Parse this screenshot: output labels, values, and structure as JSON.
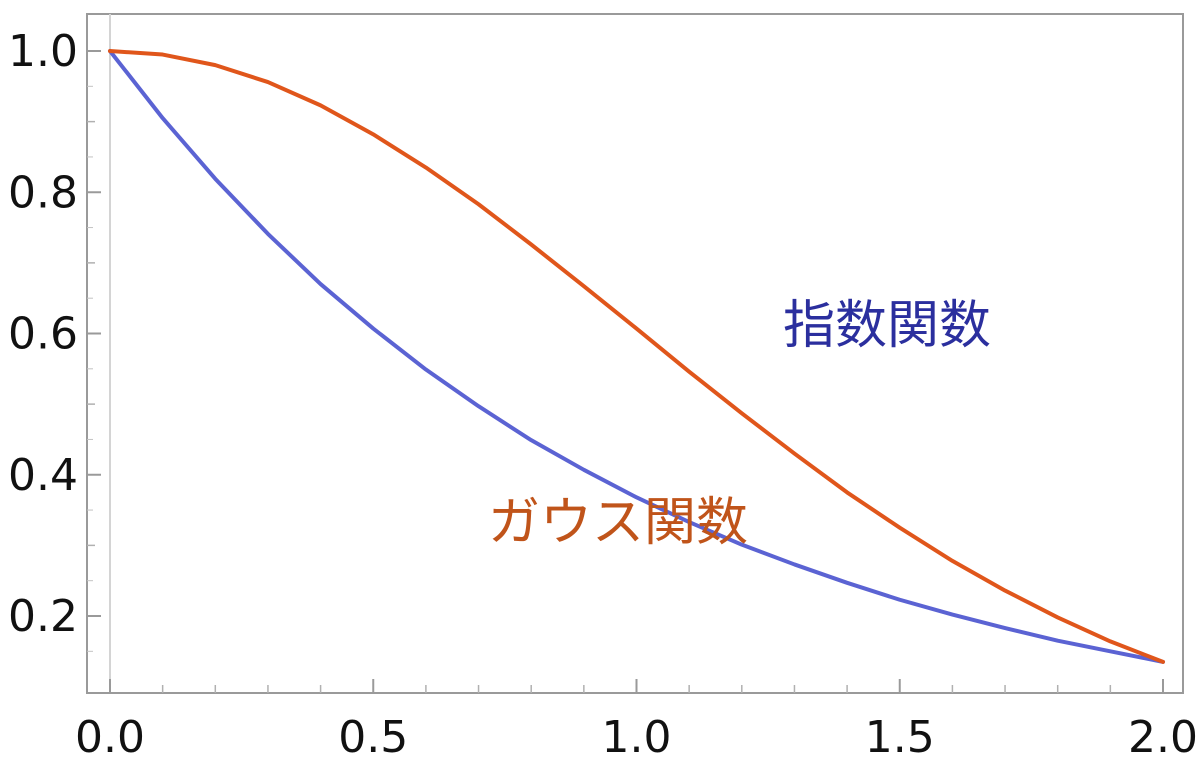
{
  "chart_data": {
    "type": "line",
    "title": "",
    "xlabel": "",
    "ylabel": "",
    "xlim": [
      0.0,
      2.0
    ],
    "ylim": [
      0.1,
      1.05
    ],
    "x_ticks": [
      "0.0",
      "0.5",
      "1.0",
      "1.5",
      "2.0"
    ],
    "y_ticks": [
      "0.2",
      "0.4",
      "0.6",
      "0.8",
      "1.0"
    ],
    "x_tick_values": [
      0.0,
      0.5,
      1.0,
      1.5,
      2.0
    ],
    "y_tick_values": [
      0.2,
      0.4,
      0.6,
      0.8,
      1.0
    ],
    "grid": false,
    "series": [
      {
        "name": "指数関数",
        "color": "#5b63d3",
        "x": [
          0.0,
          0.1,
          0.2,
          0.3,
          0.4,
          0.5,
          0.6,
          0.7,
          0.8,
          0.9,
          1.0,
          1.1,
          1.2,
          1.3,
          1.4,
          1.5,
          1.6,
          1.7,
          1.8,
          1.9,
          2.0
        ],
        "y": [
          1.0,
          0.905,
          0.819,
          0.741,
          0.67,
          0.607,
          0.549,
          0.497,
          0.449,
          0.407,
          0.368,
          0.333,
          0.301,
          0.273,
          0.247,
          0.223,
          0.202,
          0.183,
          0.165,
          0.15,
          0.135
        ]
      },
      {
        "name": "ガウス関数",
        "color": "#e0561b",
        "x": [
          0.0,
          0.1,
          0.2,
          0.3,
          0.4,
          0.5,
          0.6,
          0.7,
          0.8,
          0.9,
          1.0,
          1.1,
          1.2,
          1.3,
          1.4,
          1.5,
          1.6,
          1.7,
          1.8,
          1.9,
          2.0
        ],
        "y": [
          1.0,
          0.995,
          0.98,
          0.956,
          0.923,
          0.882,
          0.835,
          0.783,
          0.726,
          0.667,
          0.607,
          0.546,
          0.487,
          0.43,
          0.375,
          0.325,
          0.278,
          0.236,
          0.198,
          0.164,
          0.135
        ]
      }
    ],
    "annotations": [
      {
        "text": "指数関数",
        "series": 0,
        "color": "#2b2f9e"
      },
      {
        "text": "ガウス関数",
        "series": 1,
        "color": "#c0541a"
      }
    ]
  }
}
